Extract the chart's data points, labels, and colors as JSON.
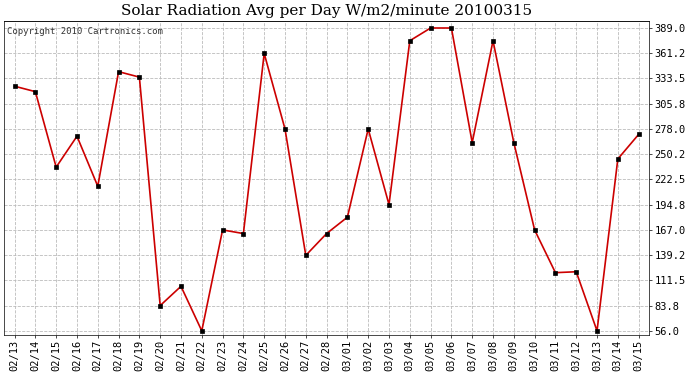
{
  "title": "Solar Radiation Avg per Day W/m2/minute 20100315",
  "copyright": "Copyright 2010 Cartronics.com",
  "dates": [
    "02/13",
    "02/14",
    "02/15",
    "02/16",
    "02/17",
    "02/18",
    "02/19",
    "02/20",
    "02/21",
    "02/22",
    "02/23",
    "02/24",
    "02/25",
    "02/26",
    "02/27",
    "02/28",
    "03/01",
    "03/02",
    "03/03",
    "03/04",
    "03/05",
    "03/06",
    "03/07",
    "03/08",
    "03/09",
    "03/10",
    "03/11",
    "03/12",
    "03/13",
    "03/14",
    "03/15"
  ],
  "values": [
    325.0,
    319.0,
    236.0,
    270.0,
    215.0,
    341.0,
    335.0,
    83.8,
    105.0,
    56.0,
    167.0,
    163.0,
    361.0,
    278.0,
    139.0,
    163.0,
    181.0,
    278.0,
    194.8,
    375.0,
    389.0,
    389.0,
    263.0,
    375.0,
    263.0,
    167.0,
    120.0,
    121.0,
    56.0,
    245.0,
    272.0
  ],
  "line_color": "#cc0000",
  "marker_color": "#000000",
  "bg_color": "#ffffff",
  "grid_color": "#bbbbbb",
  "title_fontsize": 11,
  "tick_fontsize": 7.5,
  "copyright_fontsize": 6.5,
  "ymin": 56.0,
  "ymax": 389.0,
  "yticks": [
    56.0,
    83.8,
    111.5,
    139.2,
    167.0,
    194.8,
    222.5,
    250.2,
    278.0,
    305.8,
    333.5,
    361.2,
    389.0
  ]
}
